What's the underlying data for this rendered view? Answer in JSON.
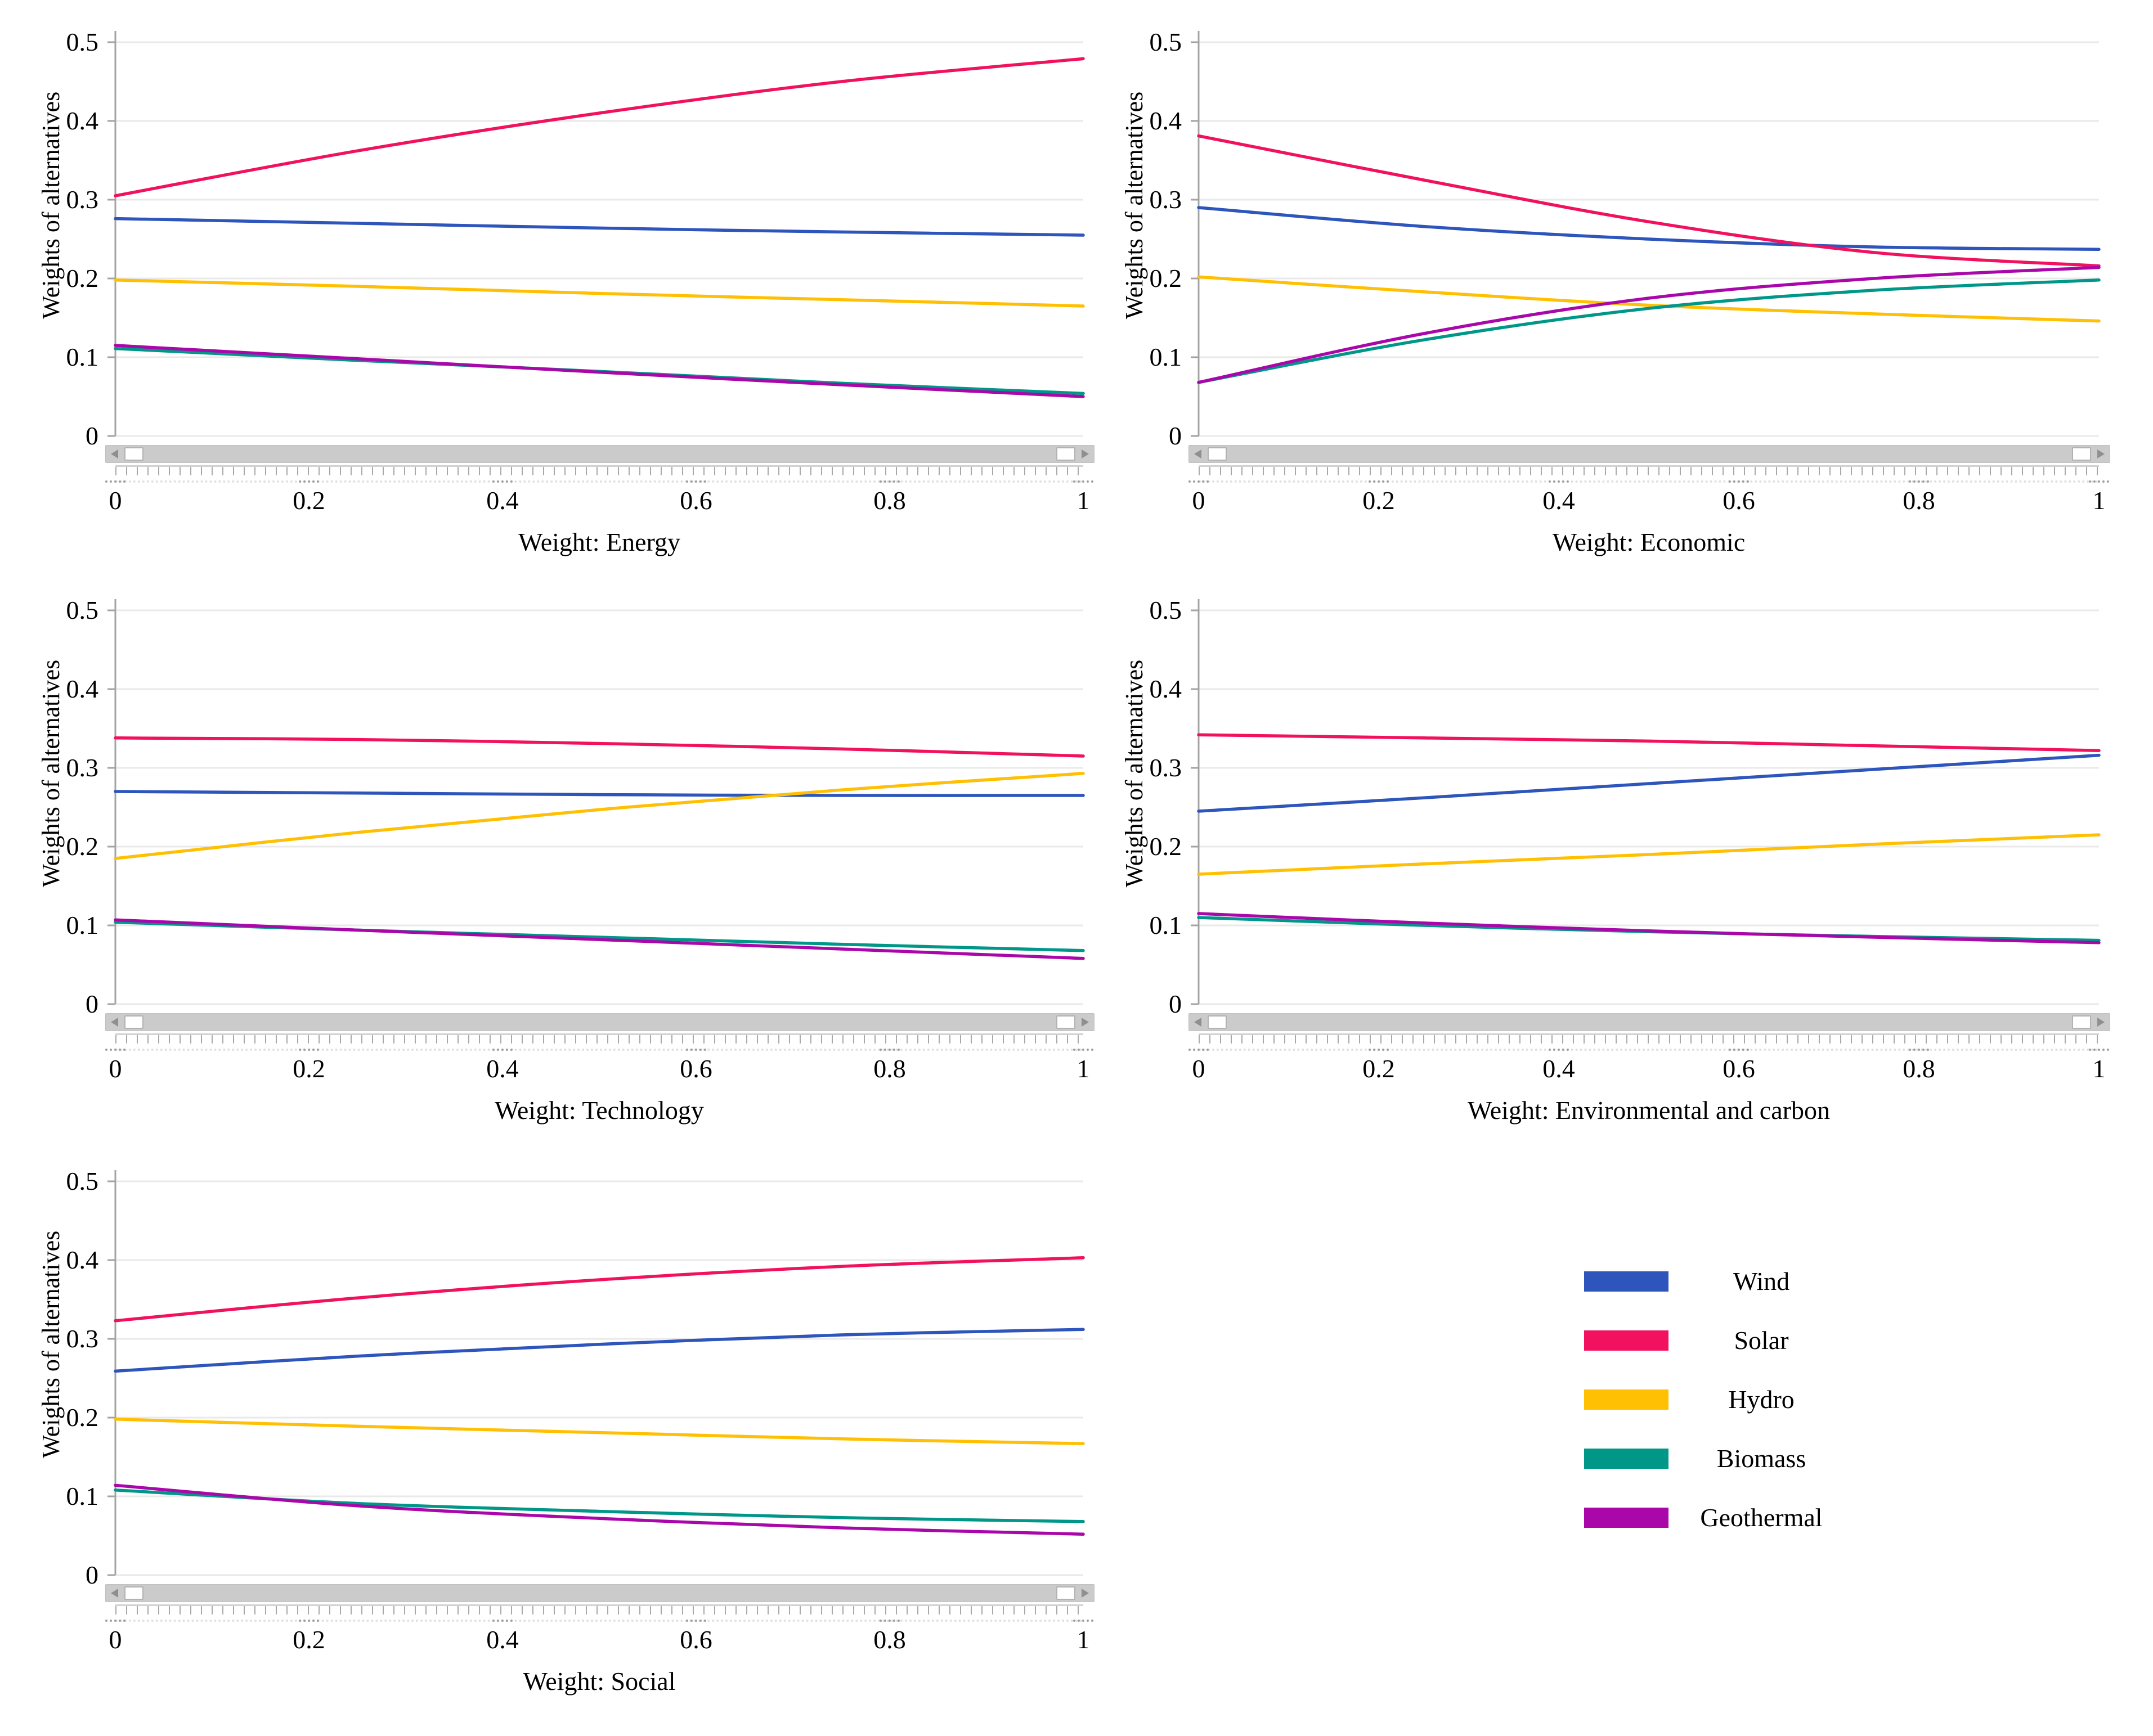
{
  "figure": {
    "description": "Sensitivity analysis: weights of renewable-energy alternatives versus criterion weights",
    "background": "#ffffff"
  },
  "axes": {
    "y_title": "Weights of alternatives",
    "y_ticks": [
      "0",
      "0.1",
      "0.2",
      "0.3",
      "0.4",
      "0.5"
    ],
    "x_ticks": [
      "0",
      "0.2",
      "0.4",
      "0.6",
      "0.8",
      "1"
    ],
    "ylim": [
      0,
      0.5
    ],
    "xlim": [
      0,
      1
    ],
    "grid": true
  },
  "legend": {
    "position": "bottom-right-panel",
    "items": [
      {
        "label": "Wind",
        "color": "#2d55bb"
      },
      {
        "label": "Solar",
        "color": "#f1115f"
      },
      {
        "label": "Hydro",
        "color": "#ffc003"
      },
      {
        "label": "Biomass",
        "color": "#009789"
      },
      {
        "label": "Geothermal",
        "color": "#a907a9"
      }
    ]
  },
  "slider": {
    "left_arrow": "left-arrow-icon",
    "right_arrow": "right-arrow-icon",
    "thumbs": [
      "min-thumb",
      "max-thumb"
    ],
    "range": [
      0,
      1
    ]
  },
  "chart_data": [
    {
      "type": "line",
      "title": "Weight: Energy",
      "xlabel": "Weight: Energy",
      "ylabel": "Weights of alternatives",
      "x": [
        0,
        0.25,
        0.5,
        0.75,
        1
      ],
      "ylim": [
        0,
        0.5
      ],
      "x_ticks": [
        "0",
        "0.2",
        "0.4",
        "0.6",
        "0.8",
        "1"
      ],
      "series": [
        {
          "name": "Wind",
          "color": "#2d55bb",
          "values": [
            0.276,
            0.27,
            0.264,
            0.259,
            0.255
          ]
        },
        {
          "name": "Solar",
          "color": "#f1115f",
          "values": [
            0.305,
            0.362,
            0.41,
            0.45,
            0.479
          ]
        },
        {
          "name": "Hydro",
          "color": "#ffc003",
          "values": [
            0.198,
            0.19,
            0.181,
            0.173,
            0.165
          ]
        },
        {
          "name": "Biomass",
          "color": "#009789",
          "values": [
            0.111,
            0.096,
            0.082,
            0.067,
            0.054
          ]
        },
        {
          "name": "Geothermal",
          "color": "#a907a9",
          "values": [
            0.115,
            0.098,
            0.081,
            0.065,
            0.05
          ]
        }
      ]
    },
    {
      "type": "line",
      "title": "Weight: Economic",
      "xlabel": "Weight: Economic",
      "ylabel": "Weights of alternatives",
      "x": [
        0,
        0.25,
        0.5,
        0.75,
        1
      ],
      "ylim": [
        0,
        0.5
      ],
      "x_ticks": [
        "0",
        "0.2",
        "0.4",
        "0.6",
        "0.8",
        "1"
      ],
      "series": [
        {
          "name": "Wind",
          "color": "#2d55bb",
          "values": [
            0.29,
            0.266,
            0.25,
            0.24,
            0.237
          ]
        },
        {
          "name": "Solar",
          "color": "#f1115f",
          "values": [
            0.381,
            0.325,
            0.272,
            0.233,
            0.216
          ]
        },
        {
          "name": "Hydro",
          "color": "#ffc003",
          "values": [
            0.202,
            0.183,
            0.166,
            0.155,
            0.146
          ]
        },
        {
          "name": "Biomass",
          "color": "#009789",
          "values": [
            0.068,
            0.122,
            0.162,
            0.185,
            0.198
          ]
        },
        {
          "name": "Geothermal",
          "color": "#a907a9",
          "values": [
            0.068,
            0.13,
            0.175,
            0.2,
            0.214
          ]
        }
      ]
    },
    {
      "type": "line",
      "title": "Weight: Technology",
      "xlabel": "Weight: Technology",
      "ylabel": "Weights of alternatives",
      "x": [
        0,
        0.25,
        0.5,
        0.75,
        1
      ],
      "ylim": [
        0,
        0.5
      ],
      "x_ticks": [
        "0",
        "0.2",
        "0.4",
        "0.6",
        "0.8",
        "1"
      ],
      "series": [
        {
          "name": "Wind",
          "color": "#2d55bb",
          "values": [
            0.27,
            0.268,
            0.266,
            0.265,
            0.265
          ]
        },
        {
          "name": "Solar",
          "color": "#f1115f",
          "values": [
            0.338,
            0.336,
            0.331,
            0.324,
            0.315
          ]
        },
        {
          "name": "Hydro",
          "color": "#ffc003",
          "values": [
            0.185,
            0.218,
            0.247,
            0.272,
            0.293
          ]
        },
        {
          "name": "Biomass",
          "color": "#009789",
          "values": [
            0.104,
            0.094,
            0.085,
            0.076,
            0.068
          ]
        },
        {
          "name": "Geothermal",
          "color": "#a907a9",
          "values": [
            0.107,
            0.094,
            0.082,
            0.07,
            0.058
          ]
        }
      ]
    },
    {
      "type": "line",
      "title": "Weight: Environmental and carbon",
      "xlabel": "Weight: Environmental and carbon",
      "ylabel": "Weights of alternatives",
      "x": [
        0,
        0.25,
        0.5,
        0.75,
        1
      ],
      "ylim": [
        0,
        0.5
      ],
      "x_ticks": [
        "0",
        "0.2",
        "0.4",
        "0.6",
        "0.8",
        "1"
      ],
      "series": [
        {
          "name": "Wind",
          "color": "#2d55bb",
          "values": [
            0.245,
            0.262,
            0.28,
            0.298,
            0.316
          ]
        },
        {
          "name": "Solar",
          "color": "#f1115f",
          "values": [
            0.342,
            0.338,
            0.334,
            0.328,
            0.322
          ]
        },
        {
          "name": "Hydro",
          "color": "#ffc003",
          "values": [
            0.165,
            0.178,
            0.19,
            0.203,
            0.215
          ]
        },
        {
          "name": "Biomass",
          "color": "#009789",
          "values": [
            0.11,
            0.1,
            0.092,
            0.086,
            0.081
          ]
        },
        {
          "name": "Geothermal",
          "color": "#a907a9",
          "values": [
            0.115,
            0.103,
            0.093,
            0.085,
            0.078
          ]
        }
      ]
    },
    {
      "type": "line",
      "title": "Weight: Social",
      "xlabel": "Weight: Social",
      "ylabel": "Weights of alternatives",
      "x": [
        0,
        0.25,
        0.5,
        0.75,
        1
      ],
      "ylim": [
        0,
        0.5
      ],
      "x_ticks": [
        "0",
        "0.2",
        "0.4",
        "0.6",
        "0.8",
        "1"
      ],
      "series": [
        {
          "name": "Wind",
          "color": "#2d55bb",
          "values": [
            0.259,
            0.278,
            0.293,
            0.305,
            0.312
          ]
        },
        {
          "name": "Solar",
          "color": "#f1115f",
          "values": [
            0.323,
            0.352,
            0.375,
            0.392,
            0.403
          ]
        },
        {
          "name": "Hydro",
          "color": "#ffc003",
          "values": [
            0.198,
            0.189,
            0.181,
            0.173,
            0.167
          ]
        },
        {
          "name": "Biomass",
          "color": "#009789",
          "values": [
            0.108,
            0.091,
            0.081,
            0.073,
            0.068
          ]
        },
        {
          "name": "Geothermal",
          "color": "#a907a9",
          "values": [
            0.114,
            0.088,
            0.072,
            0.06,
            0.052
          ]
        }
      ]
    }
  ]
}
